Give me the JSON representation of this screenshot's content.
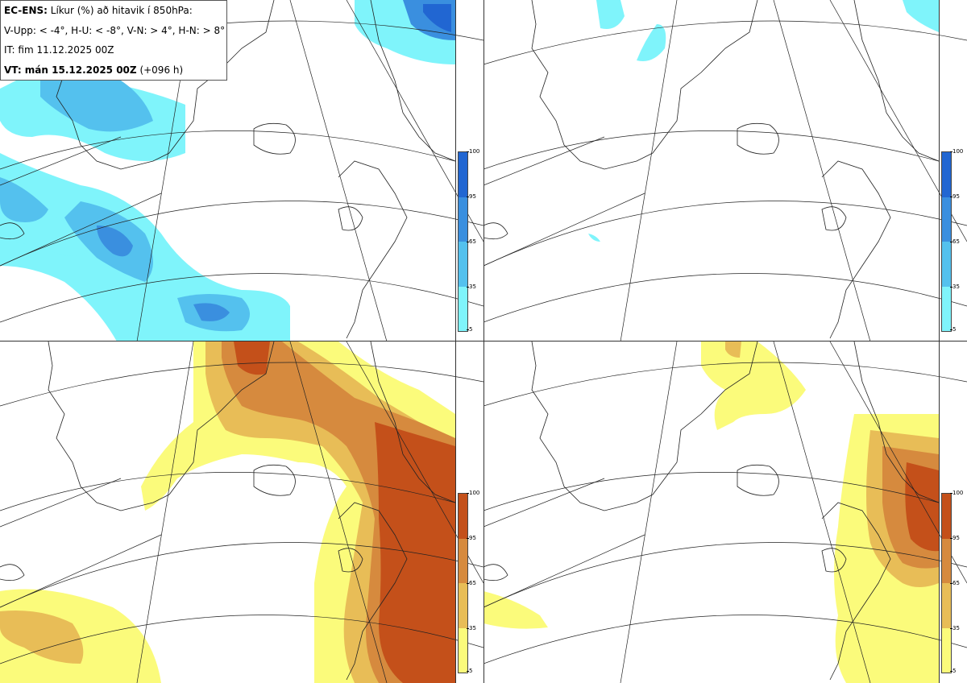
{
  "legend": {
    "product_label": "EC-ENS:",
    "product_desc": "Líkur (%) að hitavik í 850hPa:",
    "thresholds": "V-Upp: < -4°, H-U: < -8°, V-N: > 4°, H-N: > 8°",
    "init_time": "IT: fim 11.12.2025 00Z",
    "valid_label": "VT: mán 15.12.2025 00Z",
    "lead_time": "(+096 h)"
  },
  "panels": [
    {
      "id": "V-Upp",
      "position": "top-left",
      "variable": "temperature anomaly < -4°",
      "palette": "cold"
    },
    {
      "id": "H-U",
      "position": "top-right",
      "variable": "temperature anomaly < -8°",
      "palette": "cold"
    },
    {
      "id": "V-N",
      "position": "bottom-left",
      "variable": "temperature anomaly > 4°",
      "palette": "warm"
    },
    {
      "id": "H-N",
      "position": "bottom-right",
      "variable": "temperature anomaly > 8°",
      "palette": "warm"
    }
  ],
  "colorbars": {
    "cold": {
      "ticks": [
        "100",
        "95",
        "65",
        "35",
        "5"
      ],
      "colors": [
        "#2166d2",
        "#3a8fdf",
        "#54c1ee",
        "#7ff4fb"
      ]
    },
    "warm": {
      "ticks": [
        "100",
        "95",
        "65",
        "35",
        "5"
      ],
      "colors": [
        "#c4501a",
        "#d68a3e",
        "#e8bd57",
        "#fbfb7b"
      ]
    }
  }
}
